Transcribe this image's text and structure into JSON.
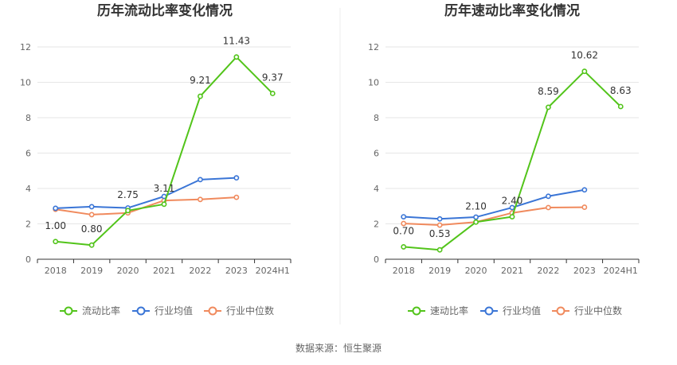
{
  "source_label": "数据来源：恒生聚源",
  "chart_data": [
    {
      "type": "line",
      "title": "历年流动比率变化情况",
      "categories": [
        "2018",
        "2019",
        "2020",
        "2021",
        "2022",
        "2023",
        "2024H1"
      ],
      "ylim": [
        0,
        12
      ],
      "yticks": [
        0,
        2,
        4,
        6,
        8,
        10,
        12
      ],
      "grid": true,
      "legend_position": "bottom",
      "series": [
        {
          "name": "流动比率",
          "color": "#52c41a",
          "values": [
            1.0,
            0.8,
            2.75,
            3.11,
            9.21,
            11.43,
            9.37
          ],
          "labels": [
            "1.00",
            "0.80",
            "2.75",
            "3.11",
            "9.21",
            "11.43",
            "9.37"
          ]
        },
        {
          "name": "行业均值",
          "color": "#3a75d6",
          "values": [
            2.88,
            2.97,
            2.9,
            3.55,
            4.5,
            4.6,
            null
          ]
        },
        {
          "name": "行业中位数",
          "color": "#f08a5d",
          "values": [
            2.82,
            2.52,
            2.62,
            3.32,
            3.38,
            3.5,
            null
          ]
        }
      ]
    },
    {
      "type": "line",
      "title": "历年速动比率变化情况",
      "categories": [
        "2018",
        "2019",
        "2020",
        "2021",
        "2022",
        "2023",
        "2024H1"
      ],
      "ylim": [
        0,
        12
      ],
      "yticks": [
        0,
        2,
        4,
        6,
        8,
        10,
        12
      ],
      "grid": true,
      "legend_position": "bottom",
      "series": [
        {
          "name": "速动比率",
          "color": "#52c41a",
          "values": [
            0.7,
            0.53,
            2.1,
            2.4,
            8.59,
            10.62,
            8.63
          ],
          "labels": [
            "0.70",
            "0.53",
            "2.10",
            "2.40",
            "8.59",
            "10.62",
            "8.63"
          ]
        },
        {
          "name": "行业均值",
          "color": "#3a75d6",
          "values": [
            2.4,
            2.28,
            2.38,
            2.92,
            3.56,
            3.92,
            null
          ]
        },
        {
          "name": "行业中位数",
          "color": "#f08a5d",
          "values": [
            2.02,
            1.93,
            2.1,
            2.62,
            2.92,
            2.94,
            null
          ]
        }
      ]
    }
  ]
}
